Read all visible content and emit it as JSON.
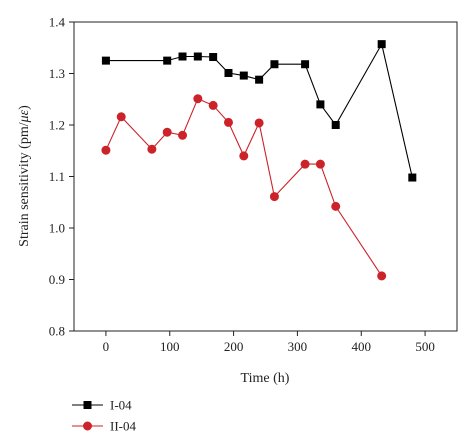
{
  "chart_data": {
    "type": "line",
    "xlabel": "Time (h)",
    "ylabel_prefix": "Strain sensitivity (pm/",
    "ylabel_unit": "με",
    "ylabel_suffix": ")",
    "xlim": [
      -50,
      550
    ],
    "ylim": [
      0.8,
      1.4
    ],
    "xticks": [
      0,
      100,
      200,
      300,
      400,
      500
    ],
    "yticks": [
      0.8,
      0.9,
      1.0,
      1.1,
      1.2,
      1.3,
      1.4
    ],
    "xtick_labels": [
      "0",
      "100",
      "200",
      "300",
      "400",
      "500"
    ],
    "ytick_labels": [
      "0.8",
      "0.9",
      "1.0",
      "1.1",
      "1.2",
      "1.3",
      "1.4"
    ],
    "grid": false,
    "legend_position": "below plot, left",
    "series": [
      {
        "name": "I-04",
        "color": "#000000",
        "marker": "square",
        "x": [
          0,
          96,
          120,
          144,
          168,
          192,
          216,
          240,
          264,
          312,
          336,
          360,
          432,
          480
        ],
        "y": [
          1.325,
          1.325,
          1.333,
          1.333,
          1.332,
          1.301,
          1.296,
          1.288,
          1.318,
          1.318,
          1.24,
          1.2,
          1.357,
          1.098
        ]
      },
      {
        "name": "II-04",
        "color": "#cc2229",
        "marker": "circle",
        "x": [
          0,
          24,
          72,
          96,
          120,
          144,
          168,
          192,
          216,
          240,
          264,
          312,
          336,
          360,
          432
        ],
        "y": [
          1.151,
          1.216,
          1.153,
          1.186,
          1.18,
          1.251,
          1.238,
          1.205,
          1.14,
          1.204,
          1.061,
          1.124,
          1.124,
          1.042,
          0.907
        ]
      }
    ]
  }
}
